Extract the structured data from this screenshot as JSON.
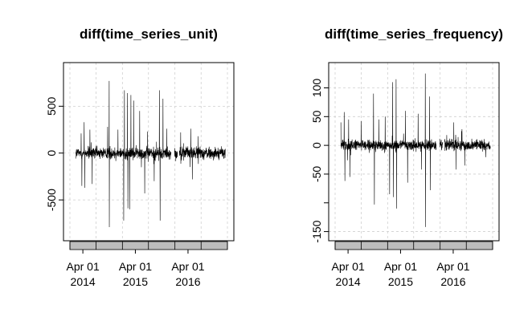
{
  "chart_data": [
    {
      "type": "line",
      "title": "diff(time_series_unit)",
      "xlabel": "",
      "ylabel": "",
      "x_tick_labels": [
        {
          "label": "Apr 01",
          "year": "2014"
        },
        {
          "label": "Apr 01",
          "year": "2015"
        },
        {
          "label": "Apr 01",
          "year": "2016"
        }
      ],
      "y_ticks": [
        -500,
        0,
        500
      ],
      "ylim": [
        -850,
        880
      ],
      "x_range": [
        "2014-01-01",
        "2016-12-31"
      ],
      "grid": true,
      "series": [
        {
          "values_summary": "daily differences, mostly between -150 and 150",
          "spikes": [
            {
              "date": "2014-03-20",
              "value": 210
            },
            {
              "date": "2014-03-25",
              "value": -350
            },
            {
              "date": "2014-04-10",
              "value": 330
            },
            {
              "date": "2014-04-15",
              "value": -370
            },
            {
              "date": "2014-05-20",
              "value": 250
            },
            {
              "date": "2014-06-05",
              "value": -330
            },
            {
              "date": "2014-09-20",
              "value": 280
            },
            {
              "date": "2014-10-01",
              "value": 770
            },
            {
              "date": "2014-10-02",
              "value": -790
            },
            {
              "date": "2014-12-01",
              "value": 250
            },
            {
              "date": "2015-01-10",
              "value": -720
            },
            {
              "date": "2015-01-15",
              "value": 670
            },
            {
              "date": "2015-02-05",
              "value": 640
            },
            {
              "date": "2015-02-08",
              "value": -590
            },
            {
              "date": "2015-02-20",
              "value": -600
            },
            {
              "date": "2015-03-01",
              "value": 620
            },
            {
              "date": "2015-03-20",
              "value": 560
            },
            {
              "date": "2015-05-01",
              "value": 450
            },
            {
              "date": "2015-06-05",
              "value": -430
            },
            {
              "date": "2015-06-25",
              "value": 230
            },
            {
              "date": "2015-08-10",
              "value": -300
            },
            {
              "date": "2015-09-15",
              "value": 670
            },
            {
              "date": "2015-09-20",
              "value": -720
            },
            {
              "date": "2015-10-10",
              "value": 580
            },
            {
              "date": "2015-11-05",
              "value": 260
            },
            {
              "date": "2016-02-10",
              "value": 220
            },
            {
              "date": "2016-04-20",
              "value": 260
            },
            {
              "date": "2016-05-01",
              "value": -280
            },
            {
              "date": "2016-06-10",
              "value": 180
            }
          ],
          "gaps": [
            [
              "2015-12-05",
              "2015-12-28"
            ],
            [
              "2016-01-20",
              "2016-01-31"
            ]
          ]
        }
      ]
    },
    {
      "type": "line",
      "title": "diff(time_series_frequency)",
      "xlabel": "",
      "ylabel": "",
      "x_tick_labels": [
        {
          "label": "Apr 01",
          "year": "2014"
        },
        {
          "label": "Apr 01",
          "year": "2015"
        },
        {
          "label": "Apr 01",
          "year": "2016"
        }
      ],
      "y_ticks": [
        -150,
        -50,
        0,
        50,
        100
      ],
      "ylim": [
        -152,
        130
      ],
      "x_range": [
        "2014-01-01",
        "2016-12-31"
      ],
      "grid": true,
      "series": [
        {
          "values_summary": "daily differences, mostly between -20 and 20",
          "spikes": [
            {
              "date": "2014-02-10",
              "value": 40
            },
            {
              "date": "2014-03-05",
              "value": 58
            },
            {
              "date": "2014-03-10",
              "value": -62
            },
            {
              "date": "2014-04-05",
              "value": 45
            },
            {
              "date": "2014-04-15",
              "value": -55
            },
            {
              "date": "2014-07-01",
              "value": 42
            },
            {
              "date": "2014-09-25",
              "value": 90
            },
            {
              "date": "2014-10-01",
              "value": -103
            },
            {
              "date": "2014-11-01",
              "value": 45
            },
            {
              "date": "2014-12-15",
              "value": 50
            },
            {
              "date": "2015-01-15",
              "value": -85
            },
            {
              "date": "2015-02-05",
              "value": 110
            },
            {
              "date": "2015-02-10",
              "value": -90
            },
            {
              "date": "2015-03-01",
              "value": 115
            },
            {
              "date": "2015-03-05",
              "value": -110
            },
            {
              "date": "2015-05-05",
              "value": 60
            },
            {
              "date": "2015-05-20",
              "value": -65
            },
            {
              "date": "2015-08-01",
              "value": 55
            },
            {
              "date": "2015-08-25",
              "value": -42
            },
            {
              "date": "2015-09-20",
              "value": 125
            },
            {
              "date": "2015-09-22",
              "value": -142
            },
            {
              "date": "2015-10-20",
              "value": 85
            },
            {
              "date": "2015-10-25",
              "value": -78
            },
            {
              "date": "2016-04-05",
              "value": 40
            },
            {
              "date": "2016-04-20",
              "value": -42
            },
            {
              "date": "2016-06-01",
              "value": 28
            },
            {
              "date": "2016-06-20",
              "value": -35
            }
          ],
          "gaps": [
            [
              "2015-12-05",
              "2015-12-28"
            ],
            [
              "2016-01-20",
              "2016-01-31"
            ]
          ]
        }
      ]
    }
  ]
}
